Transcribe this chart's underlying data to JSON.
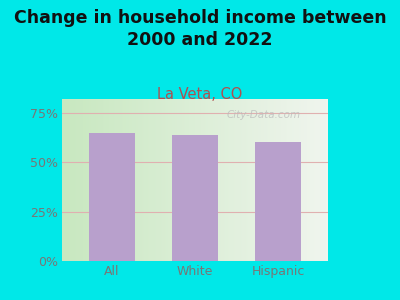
{
  "categories": [
    "All",
    "White",
    "Hispanic"
  ],
  "values": [
    65,
    64,
    60
  ],
  "bar_color": "#b8a0cc",
  "title": "Change in household income between\n2000 and 2022",
  "subtitle": "La Veta, CO",
  "title_color": "#111111",
  "subtitle_color": "#b05050",
  "ylabel_ticks": [
    "0%",
    "25%",
    "50%",
    "75%"
  ],
  "ytick_vals": [
    0,
    25,
    50,
    75
  ],
  "ylim": [
    0,
    82
  ],
  "background_color": "#00e8e8",
  "plot_bg_left": "#c8e8c0",
  "plot_bg_right": "#f0f5ee",
  "watermark": "City-Data.com",
  "grid_color": "#e0b0b0",
  "title_fontsize": 12.5,
  "subtitle_fontsize": 10.5,
  "tick_fontsize": 9,
  "xlabel_fontsize": 9,
  "tick_color": "#777777"
}
